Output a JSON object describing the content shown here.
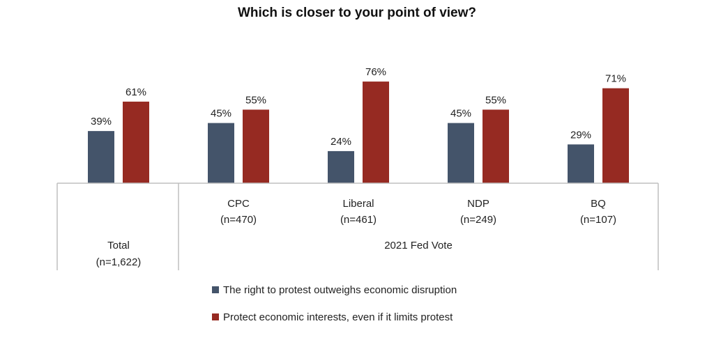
{
  "chart_data": {
    "type": "bar",
    "title": "Which is closer to your point of view?",
    "groups": [
      {
        "label": "Total",
        "sublabel": "(n=1,622)"
      },
      {
        "label": "CPC",
        "sublabel": "(n=470)"
      },
      {
        "label": "Liberal",
        "sublabel": "(n=461)"
      },
      {
        "label": "NDP",
        "sublabel": "(n=249)"
      },
      {
        "label": "BQ",
        "sublabel": "(n=107)"
      }
    ],
    "group_header": "2021 Fed Vote",
    "series": [
      {
        "name": "The right to protest outweighs economic disruption",
        "color": "#44546a",
        "values": [
          39,
          45,
          24,
          45,
          29
        ],
        "labels": [
          "39%",
          "45%",
          "24%",
          "45%",
          "29%"
        ]
      },
      {
        "name": "Protect economic interests, even if it limits protest",
        "color": "#962a22",
        "values": [
          61,
          55,
          76,
          55,
          71
        ],
        "labels": [
          "61%",
          "55%",
          "76%",
          "55%",
          "71%"
        ]
      }
    ],
    "ylim": [
      0,
      100
    ],
    "grid": false,
    "legend_position": "bottom"
  }
}
